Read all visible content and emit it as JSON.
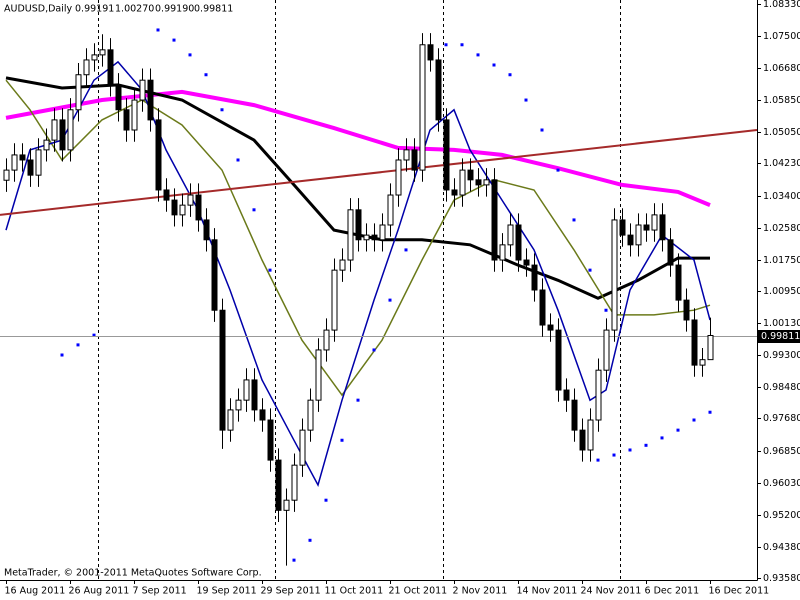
{
  "chart_data": {
    "type": "candlestick",
    "title": "AUDUSD,Daily",
    "last_labels": [
      "0.99191",
      "1.00270",
      "0.99190",
      "0.99811"
    ],
    "footer": "MetaTrader, © 2001-2011 MetaQuotes Software Corp.",
    "categories": [
      "16 Aug 2011",
      null,
      null,
      null,
      null,
      null,
      null,
      null,
      "26 Aug 2011",
      null,
      null,
      null,
      null,
      null,
      null,
      null,
      "7 Sep 2011",
      null,
      null,
      null,
      null,
      null,
      null,
      null,
      "19 Sep 2011",
      null,
      null,
      null,
      null,
      null,
      null,
      null,
      "29 Sep 2011",
      null,
      null,
      null,
      null,
      null,
      null,
      null,
      "11 Oct 2011",
      null,
      null,
      null,
      null,
      null,
      null,
      null,
      "21 Oct 2011",
      null,
      null,
      null,
      null,
      null,
      null,
      null,
      "2 Nov 2011",
      null,
      null,
      null,
      null,
      null,
      null,
      null,
      "14 Nov 2011",
      null,
      null,
      null,
      null,
      null,
      null,
      null,
      "24 Nov 2011",
      null,
      null,
      null,
      null,
      null,
      null,
      null,
      "6 Dec 2011",
      null,
      null,
      null,
      null,
      null,
      null,
      null,
      "16 Dec 2011"
    ],
    "open": [
      1.038,
      1.0406,
      1.0445,
      1.0432,
      1.0393,
      1.0458,
      1.0483,
      1.0535,
      1.0458,
      1.0561,
      1.0651,
      1.0689,
      1.0702,
      1.0715,
      1.0625,
      1.0561,
      1.0509,
      1.0586,
      1.0637,
      1.0535,
      1.0355,
      1.0329,
      1.0291,
      1.0316,
      1.0342,
      1.0278,
      1.0227,
      1.0046,
      0.9738,
      0.979,
      0.9815,
      0.9867,
      0.979,
      0.9764,
      0.9661,
      0.9532,
      0.9558,
      0.9648,
      0.9738,
      0.9815,
      0.9944,
      0.9995,
      1.0149,
      1.0175,
      1.0304,
      1.0227,
      1.0239,
      1.0227,
      1.0265,
      1.0342,
      1.0432,
      1.0458,
      1.0406,
      1.0728,
      1.0689,
      1.0535,
      1.0355,
      1.0342,
      1.0406,
      1.0381,
      1.0368,
      1.0381,
      1.0175,
      1.0214,
      1.0265,
      1.0175,
      1.0162,
      1.0098,
      1.0008,
      0.9995,
      0.9841,
      0.9815,
      0.9738,
      0.9687,
      0.9764,
      0.9892,
      0.9995,
      1.0278,
      1.0239,
      1.0214,
      1.0265,
      1.0252,
      1.0291,
      1.0227,
      1.0162,
      1.0072,
      1.0021,
      0.9905,
      0.99191
    ],
    "high": [
      1.0436,
      1.0475,
      1.0475,
      1.0462,
      1.0488,
      1.0513,
      1.0565,
      1.0565,
      1.0591,
      1.0681,
      1.0719,
      1.0732,
      1.0755,
      1.0745,
      1.0655,
      1.0591,
      1.0616,
      1.0667,
      1.0667,
      1.0565,
      1.0385,
      1.0359,
      1.0346,
      1.0372,
      1.0372,
      1.0308,
      1.0257,
      1.0076,
      0.982,
      0.9845,
      0.9897,
      0.9897,
      0.982,
      0.9794,
      0.9691,
      0.9588,
      0.9678,
      0.9768,
      0.9845,
      0.9974,
      1.0025,
      1.0179,
      1.0205,
      1.0334,
      1.0334,
      1.0269,
      1.0269,
      1.0295,
      1.0372,
      1.0462,
      1.0488,
      1.0488,
      1.0758,
      1.0758,
      1.0719,
      1.0565,
      1.0385,
      1.0436,
      1.0436,
      1.0411,
      1.0411,
      1.0411,
      1.0244,
      1.0295,
      1.0295,
      1.0205,
      1.0192,
      1.0128,
      1.0038,
      1.0025,
      0.9871,
      0.9845,
      0.9768,
      0.9794,
      0.9922,
      1.0025,
      1.0308,
      1.0308,
      1.0269,
      1.0295,
      1.0295,
      1.0321,
      1.0321,
      1.0257,
      1.0192,
      1.0102,
      1.0051,
      0.9949,
      1.0027
    ],
    "low": [
      1.035,
      1.0376,
      1.0402,
      1.0363,
      1.0363,
      1.0428,
      1.0453,
      1.0428,
      1.0428,
      1.0531,
      1.0621,
      1.0659,
      1.0672,
      1.0595,
      1.0531,
      1.0479,
      1.0479,
      1.0556,
      1.0505,
      1.0325,
      1.0299,
      1.0261,
      1.0261,
      1.0286,
      1.0248,
      1.0197,
      1.0016,
      0.969,
      0.9708,
      0.976,
      0.9785,
      0.976,
      0.9734,
      0.9631,
      0.9502,
      0.939,
      0.9528,
      0.9618,
      0.9708,
      0.9785,
      0.9914,
      0.9965,
      1.0119,
      1.0145,
      1.0197,
      1.0197,
      1.0197,
      1.0197,
      1.0235,
      1.0312,
      1.0402,
      1.0376,
      1.0376,
      1.0659,
      1.0505,
      1.0325,
      1.0312,
      1.0312,
      1.0351,
      1.0338,
      1.0338,
      1.0145,
      1.0145,
      1.0184,
      1.0145,
      1.0132,
      1.0068,
      0.9978,
      0.9965,
      0.9811,
      0.9785,
      0.9708,
      0.9657,
      0.9657,
      0.9734,
      0.9862,
      0.9965,
      1.0209,
      1.0184,
      1.0184,
      1.0222,
      1.0222,
      1.0197,
      1.0132,
      1.0042,
      0.9991,
      0.9875,
      0.9875,
      0.9919
    ],
    "close": [
      1.0406,
      1.0445,
      1.0432,
      1.0393,
      1.0458,
      1.0483,
      1.0535,
      1.0458,
      1.0561,
      1.0651,
      1.0689,
      1.0702,
      1.0715,
      1.0625,
      1.0561,
      1.0509,
      1.0586,
      1.0637,
      1.0535,
      1.0355,
      1.0329,
      1.0291,
      1.0316,
      1.0342,
      1.0278,
      1.0227,
      1.0046,
      0.9738,
      0.979,
      0.9815,
      0.9867,
      0.979,
      0.9764,
      0.9661,
      0.9532,
      0.9558,
      0.9648,
      0.9738,
      0.9815,
      0.9944,
      0.9995,
      1.0149,
      1.0175,
      1.0304,
      1.0227,
      1.0239,
      1.0227,
      1.0265,
      1.0342,
      1.0432,
      1.0458,
      1.0406,
      1.0728,
      1.0689,
      1.0535,
      1.0355,
      1.0342,
      1.0406,
      1.0381,
      1.0368,
      1.0381,
      1.0175,
      1.0214,
      1.0265,
      1.0175,
      1.0162,
      1.0098,
      1.0008,
      0.9995,
      0.9841,
      0.9815,
      0.9738,
      0.9687,
      0.9764,
      0.9892,
      0.9995,
      1.0278,
      1.0239,
      1.0214,
      1.0265,
      1.0252,
      1.0291,
      1.0227,
      1.0162,
      1.0072,
      1.0021,
      0.9905,
      0.9919,
      0.99811
    ],
    "bull_color": "#ffffff",
    "bear_color": "#000000",
    "ylim": [
      0.9353,
      1.0843
    ],
    "yticks": [
      {
        "value": 1.0833,
        "label": "1.08330"
      },
      {
        "value": 1.075,
        "label": "1.07500"
      },
      {
        "value": 1.0668,
        "label": "1.06680"
      },
      {
        "value": 1.0585,
        "label": "1.05850"
      },
      {
        "value": 1.0505,
        "label": "1.05050"
      },
      {
        "value": 1.0423,
        "label": "1.04230"
      },
      {
        "value": 1.034,
        "label": "1.03400"
      },
      {
        "value": 1.0258,
        "label": "1.02580"
      },
      {
        "value": 1.0175,
        "label": "1.01750"
      },
      {
        "value": 1.0095,
        "label": "1.00950"
      },
      {
        "value": 1.0013,
        "label": "1.00130"
      },
      {
        "value": 0.993,
        "label": "0.99300"
      },
      {
        "value": 0.9848,
        "label": "0.98480"
      },
      {
        "value": 0.9768,
        "label": "0.97680"
      },
      {
        "value": 0.9685,
        "label": "0.96850"
      },
      {
        "value": 0.9603,
        "label": "0.96030"
      },
      {
        "value": 0.952,
        "label": "0.95200"
      },
      {
        "value": 0.9438,
        "label": "0.94380"
      },
      {
        "value": 0.9358,
        "label": "0.93580"
      }
    ],
    "lines": [
      {
        "color": "#ff00ff",
        "width": 4,
        "x": [
          0,
          12,
          22,
          31,
          41,
          49,
          56,
          62,
          69,
          77,
          84,
          88
        ],
        "values": [
          1.054,
          1.0586,
          1.0607,
          1.0573,
          1.0514,
          1.0463,
          1.0458,
          1.0445,
          1.0411,
          1.0368,
          1.035,
          1.0316
        ]
      },
      {
        "color": "#000000",
        "width": 3,
        "x": [
          0,
          7,
          14,
          22,
          31,
          36,
          41,
          47,
          52,
          58,
          64,
          69,
          74,
          79,
          84,
          88
        ],
        "values": [
          1.0643,
          1.0617,
          1.0625,
          1.0586,
          1.0483,
          1.0368,
          1.0252,
          1.0227,
          1.0227,
          1.0214,
          1.0162,
          1.0123,
          1.0077,
          1.0123,
          1.018,
          1.018
        ]
      },
      {
        "color": "#6b7a1a",
        "width": 1.5,
        "x": [
          0,
          3,
          7,
          12,
          17,
          22,
          27,
          32,
          37,
          42,
          47,
          52,
          56,
          61,
          66,
          71,
          76,
          81,
          86,
          88
        ],
        "values": [
          1.0637,
          1.0561,
          1.0432,
          1.0535,
          1.0586,
          1.0522,
          1.0406,
          1.0175,
          0.9969,
          0.9828,
          0.9969,
          1.0175,
          1.0329,
          1.0381,
          1.0355,
          1.0201,
          1.0034,
          1.0034,
          1.0046,
          1.0059
        ]
      },
      {
        "color": "#0000aa",
        "width": 1.5,
        "x": [
          0,
          3,
          7,
          11,
          14,
          17,
          20,
          24,
          28,
          32,
          36,
          39,
          42,
          46,
          49,
          53,
          56,
          58,
          62,
          66,
          69,
          73,
          75,
          78,
          82,
          86,
          88
        ],
        "values": [
          1.0252,
          1.0458,
          1.0483,
          1.0637,
          1.0684,
          1.0612,
          1.0458,
          1.0304,
          1.0098,
          0.9867,
          0.9712,
          0.9597,
          0.9815,
          1.0072,
          1.0252,
          1.0509,
          1.0561,
          1.0458,
          1.0329,
          1.0201,
          1.0046,
          0.9815,
          0.9841,
          1.0098,
          1.0239,
          1.0175,
          1.0021
        ]
      },
      {
        "color": "#a52a2a",
        "width": 2,
        "x": [
          -0.75,
          93.875
        ],
        "values": [
          1.0291,
          1.0509
        ]
      }
    ],
    "sar": {
      "color": "#0000ff",
      "x": [
        7,
        9,
        11,
        19,
        21,
        23,
        25,
        27,
        29,
        31,
        33,
        36,
        38,
        40,
        42,
        44,
        46,
        48,
        50,
        55,
        57,
        59,
        61,
        63,
        65,
        67,
        69,
        71,
        73,
        75,
        74,
        76,
        78,
        80,
        82,
        84,
        86,
        88
      ],
      "values": [
        0.9931,
        0.9957,
        0.9982,
        1.0766,
        1.074,
        1.0702,
        1.0651,
        1.0561,
        1.0432,
        1.0304,
        1.0149,
        0.9404,
        0.9455,
        0.9558,
        0.9712,
        0.9815,
        0.9944,
        1.0072,
        1.0201,
        1.0728,
        1.0728,
        1.0702,
        1.0676,
        1.0651,
        1.0586,
        1.0509,
        1.0406,
        1.0278,
        1.0149,
        1.0046,
        0.9661,
        0.9674,
        0.9687,
        0.9699,
        0.9718,
        0.9738,
        0.9764,
        0.9784
      ]
    }
  }
}
